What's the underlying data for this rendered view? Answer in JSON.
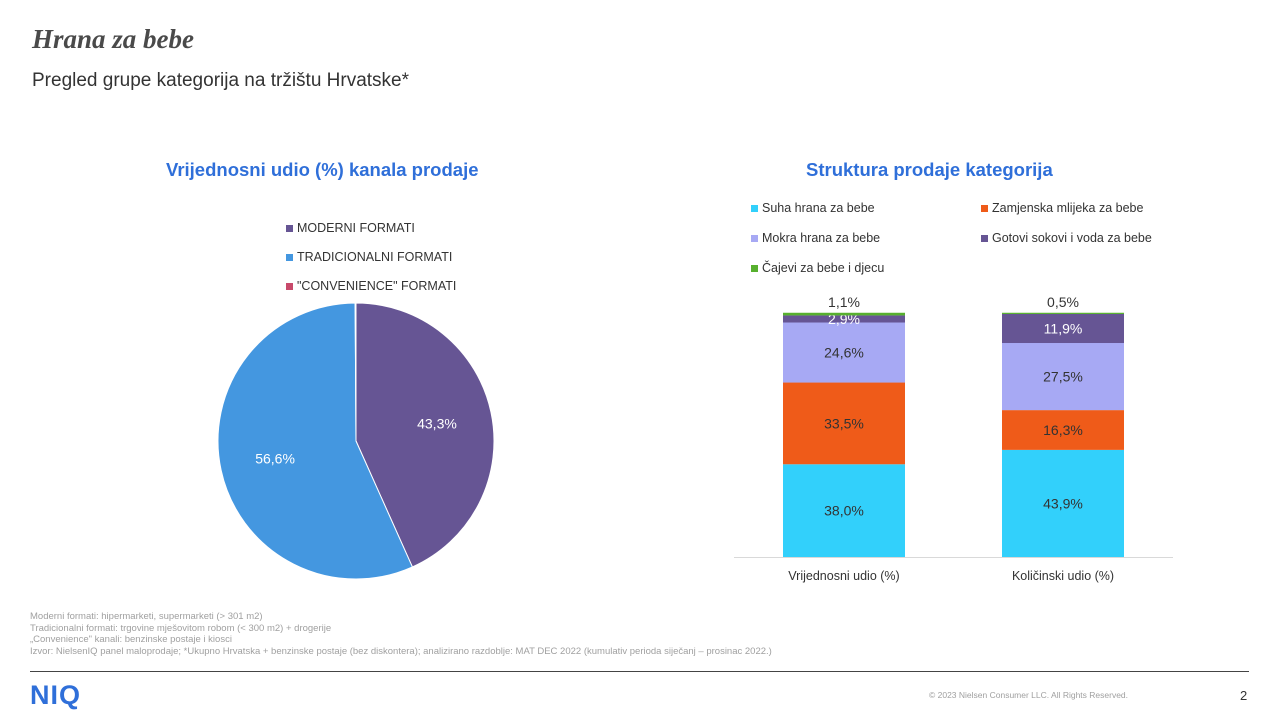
{
  "header": {
    "title": "Hrana za bebe",
    "subtitle": "Pregled grupe kategorija na tržištu Hrvatske*"
  },
  "chart_data": [
    {
      "type": "pie",
      "title": "Vrijednosni  udio (%) kanala prodaje",
      "legend_placement": "top",
      "slices": [
        {
          "name": "MODERNI FORMATI",
          "value": 43.3,
          "label": "43,3%",
          "color": "#665594",
          "show_label": true
        },
        {
          "name": "TRADICIONALNI FORMATI",
          "value": 56.6,
          "label": "56,6%",
          "color": "#4497e0",
          "show_label": true
        },
        {
          "name": "\"CONVENIENCE\" FORMATI",
          "value": 0.1,
          "label": "",
          "color": "#c84a6b",
          "show_label": false
        }
      ]
    },
    {
      "type": "bar",
      "stacked": true,
      "title": "Struktura prodaje kategorija",
      "legend_placement": "top",
      "categories": [
        "Vrijednosni udio (%)",
        "Količinski udio (%)"
      ],
      "ylim": [
        0,
        100
      ],
      "series": [
        {
          "name": "Suha hrana za bebe",
          "color": "#32d0fb",
          "values": [
            38.0,
            43.9
          ],
          "labels": [
            "38,0%",
            "43,9%"
          ],
          "label_color": "#333333"
        },
        {
          "name": "Zamjenska mlijeka za bebe",
          "color": "#ef5b19",
          "values": [
            33.5,
            16.3
          ],
          "labels": [
            "33,5%",
            "16,3%"
          ],
          "label_color": "#333333"
        },
        {
          "name": "Mokra hrana za bebe",
          "color": "#a7a9f4",
          "values": [
            24.6,
            27.5
          ],
          "labels": [
            "24,6%",
            "27,5%"
          ],
          "label_color": "#333333"
        },
        {
          "name": "Gotovi sokovi i voda za bebe",
          "color": "#665594",
          "values": [
            2.9,
            11.9
          ],
          "labels": [
            "2,9%",
            "11,9%"
          ],
          "label_color": "#ffffff"
        },
        {
          "name": "Čajevi za bebe i djecu",
          "color": "#57b02e",
          "values": [
            1.1,
            0.5
          ],
          "labels": [
            "1,1%",
            "0,5%"
          ],
          "label_color": "#333333",
          "label_above": true
        }
      ]
    }
  ],
  "footnotes": [
    "Moderni formati: hipermarketi, supermarketi (> 301 m2)",
    "Tradicionalni formati: trgovine mješovitom robom (< 300 m2) + drogerije",
    "„Convenience\" kanali: benzinske postaje i kiosci",
    "Izvor: NielsenIQ panel maloprodaje; *Ukupno Hrvatska + benzinske postaje (bez diskontera); analizirano razdoblje: MAT DEC 2022 (kumulativ perioda siječanj – prosinac 2022.)"
  ],
  "footer": {
    "logo": "NIQ",
    "copyright": "© 2023 Nielsen Consumer LLC. All Rights Reserved.",
    "page_number": "2"
  }
}
